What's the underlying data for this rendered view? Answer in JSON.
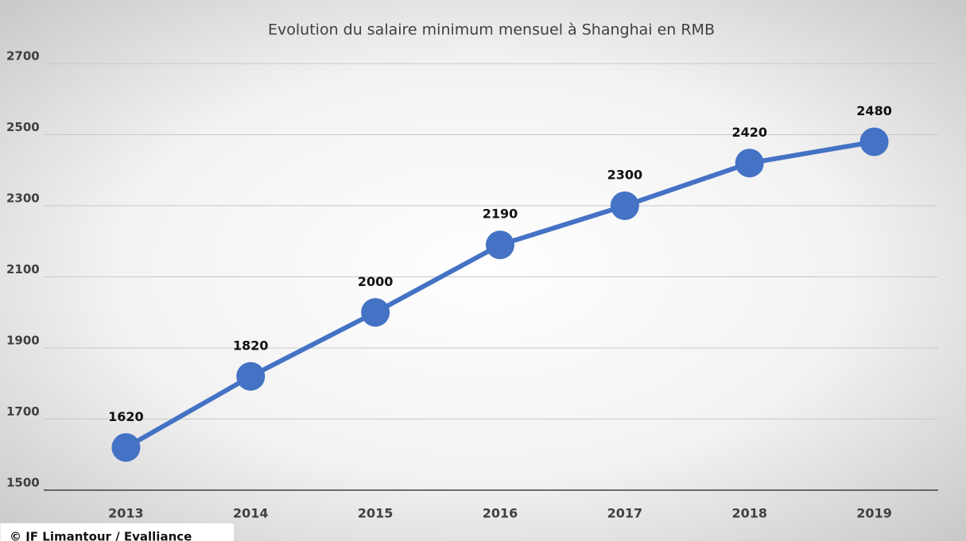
{
  "chart_data": {
    "type": "line",
    "title": "Evolution du salaire minimum mensuel à Shanghai en RMB",
    "categories": [
      "2013",
      "2014",
      "2015",
      "2016",
      "2017",
      "2018",
      "2019"
    ],
    "values": [
      1620,
      1820,
      2000,
      2190,
      2300,
      2420,
      2480
    ],
    "color": "#4472c4",
    "ylim": [
      1500,
      2700
    ],
    "yticks": [
      1500,
      1700,
      1900,
      2100,
      2300,
      2500,
      2700
    ],
    "grid": true,
    "data_labels": true,
    "note": "© JF Limantour / Evalliance"
  }
}
